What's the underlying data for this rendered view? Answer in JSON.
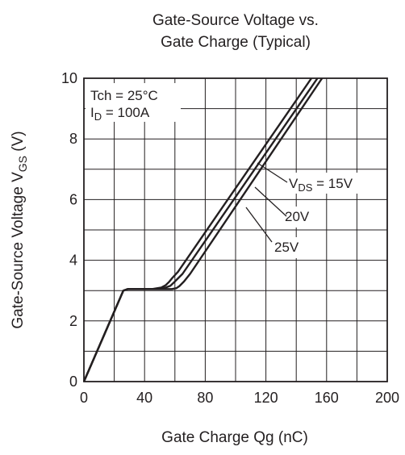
{
  "chart_data": {
    "type": "line",
    "title": "Gate-Source Voltage vs.",
    "subtitle": "Gate Charge  (Typical)",
    "xlabel": "Gate Charge  Qg (nC)",
    "ylabel": "Gate-Source Voltage  V",
    "ylabel_sub": "GS",
    "ylabel_unit": " (V)",
    "xlim": [
      0,
      200
    ],
    "ylim": [
      0,
      10
    ],
    "xticks": [
      0,
      40,
      80,
      120,
      160,
      200
    ],
    "yticks": [
      0,
      2,
      4,
      6,
      8,
      10
    ],
    "grid": true,
    "annotations": {
      "condition1": "Tch = 25°C",
      "condition2_main": "I",
      "condition2_sub": "D",
      "condition2_rest": " = 100A",
      "vds_main": "V",
      "vds_sub": "DS",
      "vds_rest": " = 15V",
      "label_20": "20V",
      "label_25": "25V"
    },
    "series": [
      {
        "name": "15V",
        "x": [
          0,
          26,
          29,
          45,
          51,
          54,
          56,
          58,
          62,
          150
        ],
        "y": [
          0,
          3.0,
          3.05,
          3.05,
          3.1,
          3.18,
          3.28,
          3.4,
          3.62,
          10
        ]
      },
      {
        "name": "20V",
        "x": [
          0,
          26,
          29,
          48,
          54,
          57,
          59,
          61,
          65,
          154
        ],
        "y": [
          0,
          3.0,
          3.05,
          3.05,
          3.1,
          3.16,
          3.25,
          3.35,
          3.55,
          10
        ]
      },
      {
        "name": "25V",
        "x": [
          0,
          26,
          29,
          58,
          61,
          63,
          66,
          70,
          157
        ],
        "y": [
          0,
          3.0,
          3.05,
          3.05,
          3.08,
          3.15,
          3.3,
          3.55,
          10
        ]
      }
    ]
  }
}
